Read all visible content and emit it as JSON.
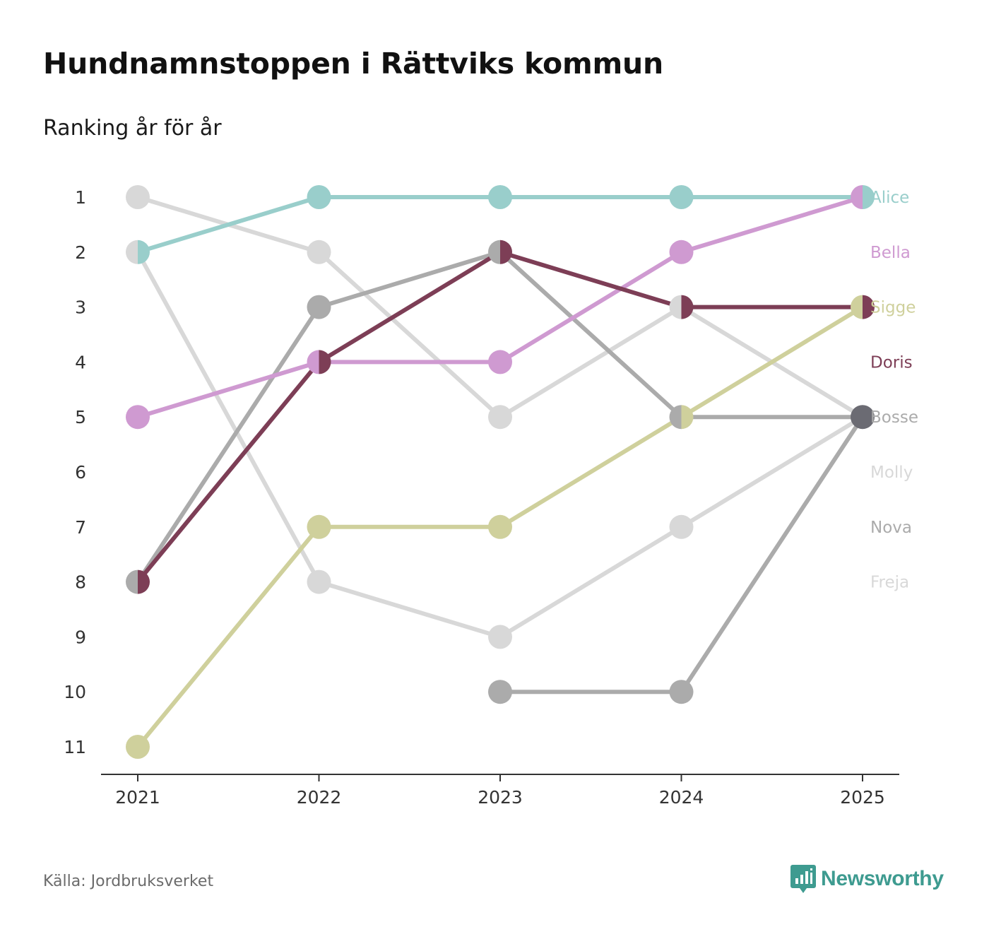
{
  "title": "Hundnamnstoppen i Rättviks kommun",
  "subtitle": "Ranking år för år",
  "source": "Källa: Jordbruksverket",
  "brand": {
    "name": "Newsworthy",
    "logo_icon": "bar-chart-speech-bubble-icon",
    "color": "#3e9b90"
  },
  "chart_data": {
    "type": "line",
    "subtype": "bump",
    "x": [
      "2021",
      "2022",
      "2023",
      "2024",
      "2025"
    ],
    "y_ticks": [
      1,
      2,
      3,
      4,
      5,
      6,
      7,
      8,
      9,
      10,
      11
    ],
    "ylim": [
      1,
      11
    ],
    "y_inverted": true,
    "grid": false,
    "legend": "right-end labels",
    "series": [
      {
        "name": "Freja",
        "color": "#d8d8d8",
        "values": [
          1,
          2,
          5,
          3,
          5
        ]
      },
      {
        "name": "Nova",
        "color": "#ababab",
        "values": [
          null,
          null,
          10,
          10,
          5
        ]
      },
      {
        "name": "Molly",
        "color": "#d8d8d8",
        "values": [
          2,
          8,
          9,
          7,
          5
        ]
      },
      {
        "name": "Bosse",
        "color": "#ababab",
        "values": [
          8,
          3,
          2,
          5,
          5
        ]
      },
      {
        "name": "Sigge",
        "color": "#cfd09c",
        "values": [
          11,
          7,
          7,
          5,
          3
        ]
      },
      {
        "name": "Bella",
        "color": "#cf9ad1",
        "values": [
          5,
          4,
          4,
          2,
          1
        ]
      },
      {
        "name": "Doris",
        "color": "#7d3e56",
        "values": [
          8,
          4,
          2,
          3,
          3
        ]
      },
      {
        "name": "Alice",
        "color": "#99cecb",
        "values": [
          2,
          1,
          1,
          1,
          1
        ]
      }
    ],
    "end_labels": [
      {
        "name": "Alice",
        "color": "#99cecb"
      },
      {
        "name": "Bella",
        "color": "#cf9ad1"
      },
      {
        "name": "Sigge",
        "color": "#cfd09c"
      },
      {
        "name": "Doris",
        "color": "#7d3e56"
      },
      {
        "name": "Bosse",
        "color": "#ababab"
      },
      {
        "name": "Molly",
        "color": "#d8d8d8"
      },
      {
        "name": "Nova",
        "color": "#ababab"
      },
      {
        "name": "Freja",
        "color": "#d8d8d8"
      }
    ],
    "shared_point_color": "#6b6b73"
  }
}
